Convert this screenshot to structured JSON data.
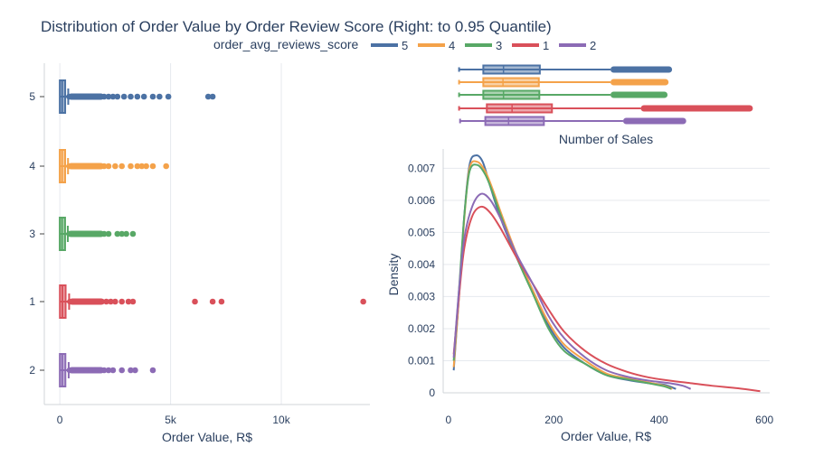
{
  "title": "Distribution of Order Value by Order Review Score (Right: to 0.95 Quantile)",
  "legend": {
    "title": "order_avg_reviews_score",
    "items": [
      {
        "name": "5",
        "color": "#4c72a4"
      },
      {
        "name": "4",
        "color": "#f4a24a"
      },
      {
        "name": "3",
        "color": "#58a866"
      },
      {
        "name": "1",
        "color": "#d9505a"
      },
      {
        "name": "2",
        "color": "#8c6bb5"
      }
    ]
  },
  "chart_data": [
    {
      "type": "box",
      "orientation": "horizontal",
      "xlabel": "Order Value, R$",
      "ylabel": "",
      "xlim": [
        -700,
        14000
      ],
      "xticks": [
        {
          "value": 0,
          "label": "0"
        },
        {
          "value": 5000,
          "label": "5k"
        },
        {
          "value": 10000,
          "label": "10k"
        }
      ],
      "categories": [
        "5",
        "4",
        "3",
        "1",
        "2"
      ],
      "series": [
        {
          "name": "5",
          "color": "#4c72a4",
          "q1": 60,
          "median": 105,
          "q3": 180,
          "whisker_low": 10,
          "whisker_high": 380,
          "outliers": [
            420,
            520,
            650,
            800,
            1000,
            1200,
            1400,
            1600,
            1800,
            2000,
            2200,
            2400,
            2600,
            2900,
            3200,
            3500,
            3800,
            4200,
            4500,
            4900,
            6700,
            6900
          ]
        },
        {
          "name": "4",
          "color": "#f4a24a",
          "q1": 58,
          "median": 102,
          "q3": 178,
          "whisker_low": 10,
          "whisker_high": 370,
          "outliers": [
            420,
            520,
            650,
            800,
            1000,
            1200,
            1400,
            1600,
            1800,
            2000,
            2200,
            2500,
            2800,
            3200,
            3500,
            3700,
            3900,
            4200,
            4800
          ]
        },
        {
          "name": "3",
          "color": "#58a866",
          "q1": 58,
          "median": 100,
          "q3": 175,
          "whisker_low": 10,
          "whisker_high": 360,
          "outliers": [
            420,
            520,
            650,
            800,
            1000,
            1200,
            1400,
            1600,
            1800,
            2000,
            2200,
            2600,
            2800,
            3000,
            3300
          ]
        },
        {
          "name": "1",
          "color": "#d9505a",
          "q1": 65,
          "median": 120,
          "q3": 200,
          "whisker_low": 10,
          "whisker_high": 420,
          "outliers": [
            460,
            560,
            700,
            900,
            1100,
            1300,
            1500,
            1700,
            1900,
            2100,
            2300,
            2500,
            2800,
            3100,
            3300,
            6100,
            6900,
            7300,
            13700
          ]
        },
        {
          "name": "2",
          "color": "#8c6bb5",
          "q1": 62,
          "median": 110,
          "q3": 190,
          "whisker_low": 10,
          "whisker_high": 400,
          "outliers": [
            440,
            540,
            680,
            850,
            1000,
            1200,
            1400,
            1600,
            1800,
            2000,
            2200,
            2400,
            2800,
            3200,
            3400,
            4200
          ]
        }
      ]
    },
    {
      "type": "box",
      "orientation": "horizontal",
      "title": "Number of Sales",
      "xlim": [
        0,
        620
      ],
      "categories": [
        "5",
        "4",
        "3",
        "1",
        "2"
      ],
      "series": [
        {
          "name": "5",
          "color": "#4c72a4",
          "whisker_low": 10,
          "q1": 58,
          "median": 98,
          "q3": 170,
          "whisker_high": 310,
          "outlier_range": [
            310,
            432
          ]
        },
        {
          "name": "4",
          "color": "#f4a24a",
          "whisker_low": 10,
          "q1": 58,
          "median": 97,
          "q3": 168,
          "whisker_high": 310,
          "outlier_range": [
            310,
            425
          ]
        },
        {
          "name": "3",
          "color": "#58a866",
          "whisker_low": 10,
          "q1": 58,
          "median": 98,
          "q3": 169,
          "whisker_high": 310,
          "outlier_range": [
            310,
            423
          ]
        },
        {
          "name": "1",
          "color": "#d9505a",
          "whisker_low": 10,
          "q1": 65,
          "median": 115,
          "q3": 194,
          "whisker_high": 370,
          "outlier_range": [
            370,
            592
          ]
        },
        {
          "name": "2",
          "color": "#8c6bb5",
          "whisker_low": 12,
          "q1": 62,
          "median": 108,
          "q3": 178,
          "whisker_high": 335,
          "outlier_range": [
            335,
            460
          ]
        }
      ]
    },
    {
      "type": "line",
      "xlabel": "Order Value, R$",
      "ylabel": "Density",
      "xlim": [
        -10,
        610
      ],
      "ylim": [
        0,
        0.0076
      ],
      "xticks": [
        0,
        200,
        400,
        600
      ],
      "yticks": [
        {
          "value": 0,
          "label": "0"
        },
        {
          "value": 0.001,
          "label": "0.001"
        },
        {
          "value": 0.002,
          "label": "0.002"
        },
        {
          "value": 0.003,
          "label": "0.003"
        },
        {
          "value": 0.004,
          "label": "0.004"
        },
        {
          "value": 0.005,
          "label": "0.005"
        },
        {
          "value": 0.006,
          "label": "0.006"
        },
        {
          "value": 0.007,
          "label": "0.007"
        }
      ],
      "series": [
        {
          "name": "5",
          "color": "#4c72a4",
          "points": [
            [
              10,
              0.0007
            ],
            [
              20,
              0.003
            ],
            [
              30,
              0.0055
            ],
            [
              40,
              0.0071
            ],
            [
              52,
              0.0074
            ],
            [
              65,
              0.0072
            ],
            [
              80,
              0.0064
            ],
            [
              100,
              0.0054
            ],
            [
              130,
              0.0042
            ],
            [
              160,
              0.0032
            ],
            [
              190,
              0.0021
            ],
            [
              220,
              0.0014
            ],
            [
              260,
              0.0009
            ],
            [
              300,
              0.00055
            ],
            [
              340,
              0.0004
            ],
            [
              380,
              0.0003
            ],
            [
              410,
              0.00025
            ],
            [
              432,
              0.00012
            ]
          ]
        },
        {
          "name": "4",
          "color": "#f4a24a",
          "points": [
            [
              10,
              0.0008
            ],
            [
              20,
              0.003
            ],
            [
              30,
              0.0054
            ],
            [
              40,
              0.007
            ],
            [
              55,
              0.0072
            ],
            [
              70,
              0.0069
            ],
            [
              85,
              0.0063
            ],
            [
              100,
              0.0056
            ],
            [
              130,
              0.0043
            ],
            [
              160,
              0.0032
            ],
            [
              190,
              0.0022
            ],
            [
              220,
              0.0015
            ],
            [
              260,
              0.001
            ],
            [
              300,
              0.0006
            ],
            [
              340,
              0.00045
            ],
            [
              380,
              0.00032
            ],
            [
              410,
              0.00022
            ],
            [
              425,
              0.00012
            ]
          ]
        },
        {
          "name": "3",
          "color": "#58a866",
          "points": [
            [
              10,
              0.001
            ],
            [
              20,
              0.0032
            ],
            [
              30,
              0.0055
            ],
            [
              40,
              0.0069
            ],
            [
              55,
              0.0071
            ],
            [
              70,
              0.0068
            ],
            [
              85,
              0.0062
            ],
            [
              100,
              0.0055
            ],
            [
              130,
              0.0042
            ],
            [
              160,
              0.0031
            ],
            [
              190,
              0.002
            ],
            [
              220,
              0.0013
            ],
            [
              260,
              0.0009
            ],
            [
              300,
              0.00055
            ],
            [
              340,
              0.00042
            ],
            [
              380,
              0.0003
            ],
            [
              410,
              0.0002
            ],
            [
              423,
              0.00012
            ]
          ]
        },
        {
          "name": "1",
          "color": "#d9505a",
          "points": [
            [
              10,
              0.0012
            ],
            [
              20,
              0.003
            ],
            [
              30,
              0.0045
            ],
            [
              45,
              0.0055
            ],
            [
              62,
              0.0058
            ],
            [
              80,
              0.0056
            ],
            [
              100,
              0.0051
            ],
            [
              130,
              0.0042
            ],
            [
              160,
              0.0034
            ],
            [
              190,
              0.0026
            ],
            [
              220,
              0.0019
            ],
            [
              260,
              0.0013
            ],
            [
              300,
              0.0009
            ],
            [
              340,
              0.00065
            ],
            [
              380,
              0.00048
            ],
            [
              420,
              0.00038
            ],
            [
              460,
              0.0003
            ],
            [
              500,
              0.00022
            ],
            [
              550,
              0.00014
            ],
            [
              592,
              5e-05
            ]
          ]
        },
        {
          "name": "2",
          "color": "#8c6bb5",
          "points": [
            [
              10,
              0.0011
            ],
            [
              20,
              0.0032
            ],
            [
              30,
              0.0048
            ],
            [
              45,
              0.0058
            ],
            [
              62,
              0.0062
            ],
            [
              80,
              0.006
            ],
            [
              100,
              0.0054
            ],
            [
              130,
              0.0043
            ],
            [
              160,
              0.0034
            ],
            [
              190,
              0.0024
            ],
            [
              220,
              0.0017
            ],
            [
              260,
              0.0011
            ],
            [
              300,
              0.0007
            ],
            [
              340,
              0.0005
            ],
            [
              380,
              0.00038
            ],
            [
              420,
              0.0003
            ],
            [
              445,
              0.00022
            ],
            [
              460,
              0.00012
            ]
          ]
        }
      ]
    }
  ]
}
